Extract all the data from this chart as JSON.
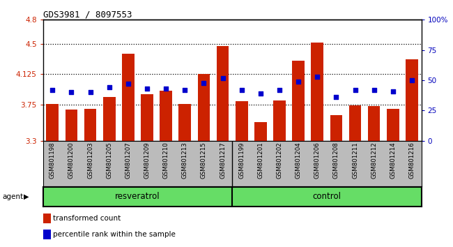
{
  "title": "GDS3981 / 8097553",
  "categories": [
    "GSM801198",
    "GSM801200",
    "GSM801203",
    "GSM801205",
    "GSM801207",
    "GSM801209",
    "GSM801210",
    "GSM801213",
    "GSM801215",
    "GSM801217",
    "GSM801199",
    "GSM801201",
    "GSM801202",
    "GSM801204",
    "GSM801206",
    "GSM801208",
    "GSM801211",
    "GSM801212",
    "GSM801214",
    "GSM801216"
  ],
  "bar_values": [
    3.76,
    3.69,
    3.7,
    3.84,
    4.38,
    3.88,
    3.92,
    3.76,
    4.125,
    4.47,
    3.79,
    3.53,
    3.8,
    4.29,
    4.52,
    3.62,
    3.74,
    3.73,
    3.7,
    4.31
  ],
  "dot_values": [
    42,
    40,
    40,
    44,
    47,
    43,
    43,
    42,
    48,
    52,
    42,
    39,
    42,
    49,
    53,
    36,
    42,
    42,
    41,
    50
  ],
  "bar_color": "#cc2200",
  "dot_color": "#0000cc",
  "ylim_left": [
    3.3,
    4.8
  ],
  "ylim_right": [
    0,
    100
  ],
  "yticks_left": [
    3.3,
    3.75,
    4.125,
    4.5,
    4.8
  ],
  "yticks_right": [
    0,
    25,
    50,
    75,
    100
  ],
  "ytick_labels_left": [
    "3.3",
    "3.75",
    "4.125",
    "4.5",
    "4.8"
  ],
  "ytick_labels_right": [
    "0",
    "25",
    "50",
    "75",
    "100%"
  ],
  "hlines": [
    3.75,
    4.125,
    4.5
  ],
  "group_labels": [
    "resveratrol",
    "control"
  ],
  "agent_label": "agent",
  "legend_bar": "transformed count",
  "legend_dot": "percentile rank within the sample",
  "green_color": "#66dd66",
  "xlabel_color": "#cc2200",
  "ylabel_right_color": "#0000bb",
  "tick_area_color": "#bbbbbb",
  "n_resveratrol": 10,
  "n_control": 10
}
